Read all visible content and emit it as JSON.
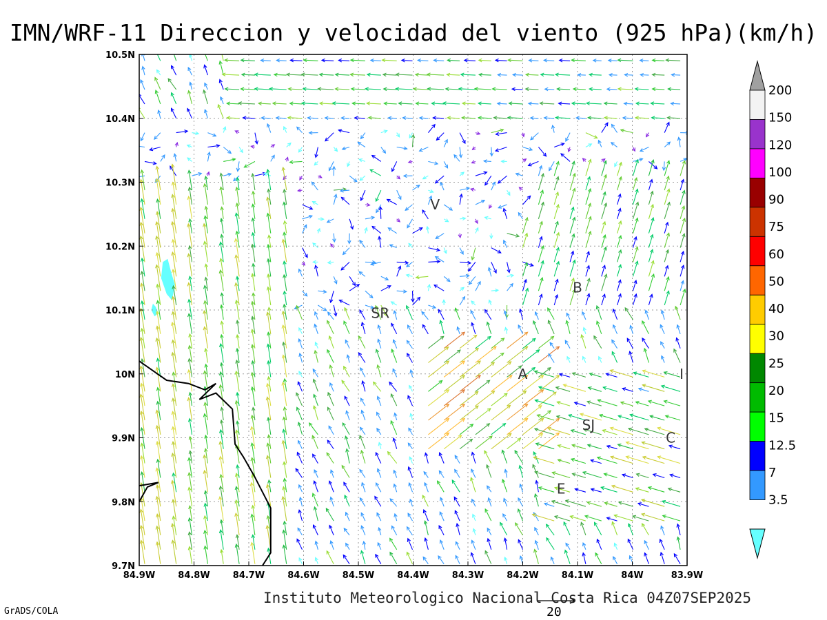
{
  "chart_data": {
    "type": "vector_field",
    "title": "IMN/WRF-11 Direccion y velocidad del viento (925 hPa)(km/h)",
    "footer": "Instituto Meteorologico Nacional Costa Rica 04Z07SEP2025",
    "software": "GrADS/COLA",
    "reference_vector_value": "20",
    "x_ticks": [
      "84.9W",
      "84.8W",
      "84.7W",
      "84.6W",
      "84.5W",
      "84.4W",
      "84.3W",
      "84.2W",
      "84.1W",
      "84W",
      "83.9W"
    ],
    "y_ticks": [
      "10.5N",
      "10.4N",
      "10.3N",
      "10.2N",
      "10.1N",
      "10N",
      "9.9N",
      "9.8N",
      "9.7N"
    ],
    "xlim": [
      -84.9,
      -83.9
    ],
    "ylim": [
      9.7,
      10.5
    ],
    "grid": true,
    "legend": "right",
    "colorbar": {
      "labels": [
        "200",
        "150",
        "120",
        "100",
        "90",
        "75",
        "60",
        "50",
        "40",
        "30",
        "25",
        "20",
        "15",
        "12.5",
        "7",
        "3.5"
      ],
      "colors": [
        "#a0a0a0",
        "#f3f3f3",
        "#9933cc",
        "#ff00ff",
        "#990000",
        "#cc3300",
        "#ff0000",
        "#ff6600",
        "#ffcc00",
        "#ffff00",
        "#008800",
        "#00bb00",
        "#00ff00",
        "#0000ff",
        "#3399ff",
        "#66ffff"
      ]
    },
    "places": [
      {
        "label": "V",
        "lon": -84.36,
        "lat": 10.265
      },
      {
        "label": "SR",
        "lon": -84.46,
        "lat": 10.095
      },
      {
        "label": "B",
        "lon": -84.1,
        "lat": 10.135
      },
      {
        "label": "A",
        "lon": -84.2,
        "lat": 10.0
      },
      {
        "label": "SJ",
        "lon": -84.08,
        "lat": 9.92
      },
      {
        "label": "C",
        "lon": -83.93,
        "lat": 9.9
      },
      {
        "label": "E",
        "lon": -84.13,
        "lat": 9.82
      },
      {
        "label": "I",
        "lon": -83.91,
        "lat": 10.0
      }
    ],
    "coastline": [
      [
        [
          -84.9,
          10.02
        ],
        [
          -84.85,
          9.99
        ],
        [
          -84.81,
          9.985
        ],
        [
          -84.78,
          9.975
        ],
        [
          -84.76,
          9.985
        ],
        [
          -84.79,
          9.96
        ],
        [
          -84.76,
          9.97
        ],
        [
          -84.73,
          9.945
        ],
        [
          -84.725,
          9.89
        ],
        [
          -84.71,
          9.87
        ],
        [
          -84.69,
          9.84
        ],
        [
          -84.66,
          9.79
        ],
        [
          -84.66,
          9.72
        ],
        [
          -84.675,
          9.7
        ]
      ],
      [
        [
          -84.9,
          9.8
        ],
        [
          -84.885,
          9.823
        ],
        [
          -84.865,
          9.83
        ],
        [
          -84.9,
          9.825
        ]
      ]
    ],
    "shaded_regions": [
      {
        "color": "#66ffff",
        "points": [
          [
            -84.857,
            10.175
          ],
          [
            -84.848,
            10.18
          ],
          [
            -84.842,
            10.16
          ],
          [
            -84.835,
            10.14
          ],
          [
            -84.84,
            10.115
          ],
          [
            -84.85,
            10.125
          ],
          [
            -84.86,
            10.15
          ]
        ]
      },
      {
        "color": "#66ffff",
        "points": [
          [
            -84.875,
            10.11
          ],
          [
            -84.87,
            10.105
          ],
          [
            -84.865,
            10.095
          ],
          [
            -84.872,
            10.09
          ],
          [
            -84.878,
            10.1
          ]
        ]
      }
    ],
    "wind_regions": [
      {
        "region": "west_lowland",
        "lon": [
          -84.9,
          -84.62
        ],
        "lat": [
          9.7,
          10.3
        ],
        "direction": "S",
        "speed_range": [
          15,
          40
        ]
      },
      {
        "region": "north_band",
        "lon": [
          -84.72,
          -83.9
        ],
        "lat": [
          10.38,
          10.5
        ],
        "direction": "E",
        "speed_range": [
          7,
          20
        ]
      },
      {
        "region": "central_plateau",
        "lon": [
          -84.4,
          -84.15
        ],
        "lat": [
          9.87,
          10.05
        ],
        "direction": "SW",
        "speed_range": [
          20,
          50
        ]
      },
      {
        "region": "east_slope",
        "lon": [
          -84.15,
          -83.9
        ],
        "lat": [
          9.75,
          10.0
        ],
        "direction": "SE",
        "speed_range": [
          12.5,
          40
        ]
      },
      {
        "region": "caribbean_plain",
        "lon": [
          -84.6,
          -84.0
        ],
        "lat": [
          10.1,
          10.38
        ],
        "direction": "mixed",
        "speed_range": [
          3.5,
          20
        ]
      }
    ]
  }
}
